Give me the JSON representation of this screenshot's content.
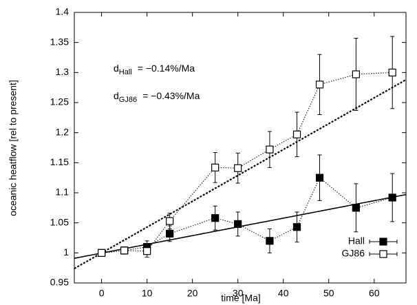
{
  "chart_data": {
    "type": "line",
    "x_label": "time [Ma]",
    "y_label": "oceanic heatflow [rel to present]",
    "x": [
      0,
      5,
      10,
      15,
      25,
      30,
      37,
      43,
      48,
      56,
      64
    ],
    "series": [
      {
        "name": "Hall",
        "color": "#000000",
        "marker": "filled-square",
        "values": [
          1.0,
          1.004,
          1.01,
          1.032,
          1.058,
          1.048,
          1.02,
          1.043,
          1.125,
          1.075,
          1.092
        ],
        "errors": [
          0.005,
          0.006,
          0.01,
          0.013,
          0.02,
          0.02,
          0.02,
          0.025,
          0.038,
          0.04,
          0.04
        ]
      },
      {
        "name": "GJ86",
        "color": "#000000",
        "marker": "open-square",
        "values": [
          1.0,
          1.004,
          1.003,
          1.053,
          1.142,
          1.141,
          1.172,
          1.197,
          1.28,
          1.297,
          1.3
        ],
        "errors": [
          0.005,
          0.006,
          0.01,
          0.013,
          0.025,
          0.025,
          0.03,
          0.037,
          0.05,
          0.06,
          0.06
        ]
      }
    ],
    "trend_lines": [
      {
        "x": [
          -6,
          67
        ],
        "values": [
          0.991,
          1.097
        ],
        "dash": "solid"
      },
      {
        "x": [
          -6,
          67
        ],
        "values": [
          0.974,
          1.288
        ],
        "dash": "dashed"
      }
    ],
    "annotations": [
      {
        "symbol": "d",
        "subscript": "Hall",
        "text": "= −0.14%/Ma"
      },
      {
        "symbol": "d",
        "subscript": "GJ86",
        "text": "= −0.43%/Ma"
      }
    ],
    "xlim": [
      -6,
      67
    ],
    "xticks": [
      0,
      10,
      20,
      30,
      40,
      50,
      60
    ],
    "ylim": [
      0.95,
      1.4
    ],
    "yticks": [
      0.95,
      1,
      1.05,
      1.1,
      1.15,
      1.2,
      1.25,
      1.3,
      1.35,
      1.4
    ],
    "grid": false,
    "legend": "bottom-right"
  }
}
